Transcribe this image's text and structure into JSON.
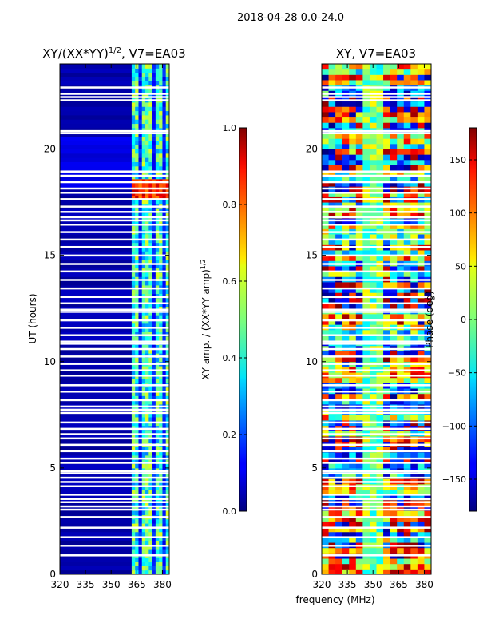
{
  "figure": {
    "suptitle": "2018-04-28 0.0-24.0",
    "shared_xlabel": "frequency (MHz)"
  },
  "chart_data": [
    {
      "type": "heatmap",
      "title_main": "XY/(XX*YY)",
      "title_exp": "1/2",
      "title_rest": ", V7=EA03",
      "xlabel": "",
      "ylabel": "UT (hours)",
      "xlim": [
        320,
        384
      ],
      "ylim": [
        0,
        24
      ],
      "xticks": [
        "320",
        "335",
        "350",
        "365",
        "380"
      ],
      "xtick_values": [
        320,
        335,
        350,
        365,
        380
      ],
      "yticks": [
        "0",
        "5",
        "10",
        "15",
        "20"
      ],
      "ytick_values": [
        0,
        5,
        10,
        15,
        20
      ],
      "colorbar": {
        "label_main": "XY amp. / (XX*YY amp)",
        "label_exp": "1/2",
        "ticks": [
          "0.0",
          "0.2",
          "0.4",
          "0.6",
          "0.8",
          "1.0"
        ],
        "tick_values": [
          0.0,
          0.2,
          0.4,
          0.6,
          0.8,
          1.0
        ],
        "range": [
          0,
          1
        ],
        "colormap": "jet"
      }
    },
    {
      "type": "heatmap",
      "title_main": "XY, V7=EA03",
      "xlabel": "",
      "ylabel": "",
      "xlim": [
        320,
        384
      ],
      "ylim": [
        0,
        24
      ],
      "xticks": [
        "320",
        "335",
        "350",
        "365",
        "380"
      ],
      "xtick_values": [
        320,
        335,
        350,
        365,
        380
      ],
      "yticks": [
        "0",
        "5",
        "10",
        "15",
        "20"
      ],
      "ytick_values": [
        0,
        5,
        10,
        15,
        20
      ],
      "colorbar": {
        "label_main": "Phase (deg)",
        "ticks": [
          "−150",
          "−100",
          "−50",
          "0",
          "50",
          "100",
          "150"
        ],
        "tick_values": [
          -150,
          -100,
          -50,
          0,
          50,
          100,
          150
        ],
        "range": [
          -180,
          180
        ],
        "colormap": "jet"
      }
    }
  ],
  "flagged_hours": [
    0.9,
    1.35,
    1.75,
    2.2,
    2.7,
    3.05,
    3.2,
    3.4,
    3.55,
    3.75,
    4.15,
    4.35,
    4.55,
    4.75,
    4.85,
    5.25,
    5.45,
    5.8,
    6.1,
    6.4,
    6.6,
    6.85,
    7.15,
    7.6,
    7.75,
    7.9,
    8.2,
    8.6,
    8.9,
    9.35,
    9.6,
    9.9,
    10.25,
    10.6,
    10.85,
    10.95,
    11.25,
    11.6,
    11.95,
    12.35,
    12.45,
    12.75,
    13.05,
    13.45,
    13.85,
    14.25,
    14.6,
    15.0,
    15.4,
    15.75,
    16.1,
    16.45,
    16.65,
    16.8,
    17.05,
    17.3,
    17.65,
    17.95,
    18.15,
    18.45,
    18.75,
    18.95,
    20.75,
    20.85,
    22.3,
    22.45,
    22.6,
    22.9
  ]
}
